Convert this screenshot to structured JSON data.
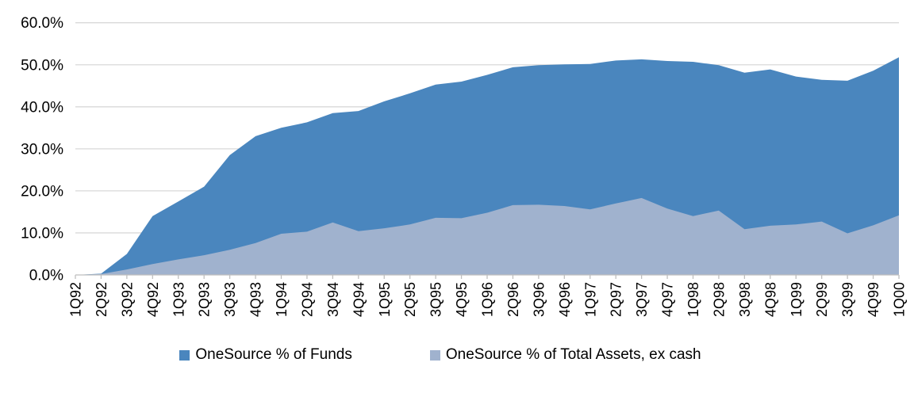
{
  "chart_data": {
    "type": "area",
    "title": "",
    "xlabel": "",
    "ylabel": "",
    "ylim": [
      0,
      60
    ],
    "y_tick_labels": [
      "0.0%",
      "10.0%",
      "20.0%",
      "30.0%",
      "40.0%",
      "50.0%",
      "60.0%"
    ],
    "grid": true,
    "legend_position": "bottom-center",
    "categories": [
      "1Q92",
      "2Q92",
      "3Q92",
      "4Q92",
      "1Q93",
      "2Q93",
      "3Q93",
      "4Q93",
      "1Q94",
      "2Q94",
      "3Q94",
      "4Q94",
      "1Q95",
      "2Q95",
      "3Q95",
      "4Q95",
      "1Q96",
      "2Q96",
      "3Q96",
      "4Q96",
      "1Q97",
      "2Q97",
      "3Q97",
      "4Q97",
      "1Q98",
      "2Q98",
      "3Q98",
      "4Q98",
      "1Q99",
      "2Q99",
      "3Q99",
      "4Q99",
      "1Q00"
    ],
    "series": [
      {
        "name": "OneSource % of Funds",
        "color": "#4A86BE",
        "values": [
          0.0,
          0.3,
          5.0,
          14.0,
          17.5,
          21.0,
          28.5,
          33.0,
          35.0,
          36.3,
          38.5,
          39.0,
          41.3,
          43.2,
          45.3,
          46.0,
          47.6,
          49.4,
          49.9,
          50.1,
          50.2,
          51.0,
          51.3,
          50.9,
          50.7,
          49.9,
          48.1,
          48.9,
          47.2,
          46.4,
          46.2,
          48.6,
          51.8
        ]
      },
      {
        "name": "OneSource % of Total Assets, ex cash",
        "color": "#A0B2CE",
        "values": [
          0.0,
          0.2,
          1.3,
          2.6,
          3.7,
          4.7,
          6.0,
          7.6,
          9.8,
          10.3,
          12.5,
          10.4,
          11.1,
          12.0,
          13.6,
          13.5,
          14.8,
          16.6,
          16.7,
          16.4,
          15.6,
          17.0,
          18.3,
          15.8,
          14.0,
          15.3,
          10.9,
          11.7,
          12.0,
          12.7,
          9.9,
          11.8,
          14.2
        ]
      }
    ]
  },
  "style": {
    "gridline_color": "#D9D9D9",
    "axis_color": "#BFBFBF",
    "text_color": "#000000",
    "background": "#FFFFFF"
  }
}
